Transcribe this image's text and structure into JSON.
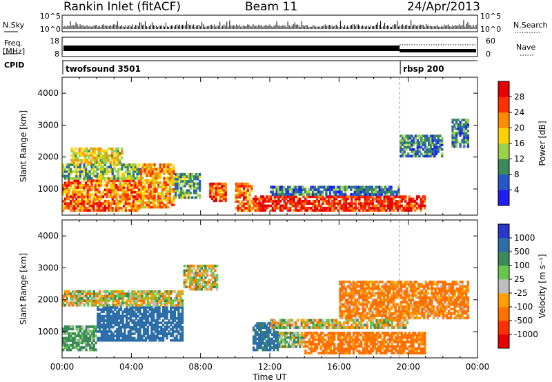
{
  "header": {
    "title": "Rankin Inlet (fitACF)",
    "beam": "Beam 11",
    "date": "24/Apr/2013"
  },
  "status_panel": {
    "nsky_label": "N.Sky",
    "nsky_ticks": [
      "10^5",
      "10^0"
    ],
    "nsearch_label": "N.Search",
    "freq_label_line1": "Freq.",
    "freq_label_line2": "[MHz]",
    "freq_ticks": [
      "18",
      "8"
    ],
    "nave_label": "Nave",
    "nave_ticks": [
      "60",
      "0"
    ],
    "cpid_label": "CPID",
    "cpid_modes": [
      {
        "name": "twofsound 3501",
        "start_hour": 0
      },
      {
        "name": "rbsp 200",
        "start_hour": 19.5
      }
    ]
  },
  "axes": {
    "ylabel": "Slant Range [km]",
    "yticks": [
      "1000",
      "2000",
      "3000",
      "4000"
    ],
    "xlabel": "Time UT",
    "xticks": [
      "00:00",
      "04:00",
      "08:00",
      "12:00",
      "16:00",
      "20:00",
      "00:00"
    ]
  },
  "colorbars": {
    "power": {
      "label": "Power [dB]",
      "ticks": [
        "4",
        "8",
        "12",
        "16",
        "20",
        "24",
        "28"
      ],
      "colors": [
        "#1e1ef0",
        "#2858c8",
        "#3a8a5a",
        "#9ad24a",
        "#ffd200",
        "#ff8c00",
        "#ff3000",
        "#e60000"
      ]
    },
    "velocity": {
      "label": "Velocity [m s⁻¹]",
      "ticks": [
        "1000",
        "500",
        "100",
        "25",
        "-25",
        "-100",
        "-500",
        "-1000"
      ],
      "colors": [
        "#2838c8",
        "#2e6ea8",
        "#3a8a5a",
        "#66c84a",
        "#bebebe",
        "#ffa000",
        "#ff7000",
        "#ff3000",
        "#e60000"
      ]
    }
  },
  "chart_data": [
    {
      "type": "heatmap",
      "title": "Power",
      "xlabel": "Time UT",
      "ylabel": "Slant Range [km]",
      "xlim_hours": [
        0,
        24
      ],
      "ylim_km": [
        180,
        4500
      ],
      "colorbar_range_db": [
        0,
        30
      ],
      "regions": [
        {
          "t0": 0.0,
          "t1": 4.5,
          "r0": 300,
          "r1": 1300,
          "value_db": 22
        },
        {
          "t0": 0.0,
          "t1": 4.5,
          "r0": 1300,
          "r1": 1800,
          "value_db": 12
        },
        {
          "t0": 0.5,
          "t1": 3.5,
          "r0": 1800,
          "r1": 2300,
          "value_db": 16
        },
        {
          "t0": 4.5,
          "t1": 6.5,
          "r0": 400,
          "r1": 1800,
          "value_db": 20
        },
        {
          "t0": 6.5,
          "t1": 8.0,
          "r0": 700,
          "r1": 1500,
          "value_db": 10
        },
        {
          "t0": 8.5,
          "t1": 9.5,
          "r0": 600,
          "r1": 1200,
          "value_db": 24
        },
        {
          "t0": 10.0,
          "t1": 11.0,
          "r0": 300,
          "r1": 1200,
          "value_db": 22
        },
        {
          "t0": 11.0,
          "t1": 21.0,
          "r0": 300,
          "r1": 800,
          "value_db": 26
        },
        {
          "t0": 12.0,
          "t1": 19.5,
          "r0": 800,
          "r1": 1100,
          "value_db": 8
        },
        {
          "t0": 19.5,
          "t1": 22.0,
          "r0": 2000,
          "r1": 2700,
          "value_db": 8
        },
        {
          "t0": 22.5,
          "t1": 23.5,
          "r0": 2300,
          "r1": 3200,
          "value_db": 8
        }
      ]
    },
    {
      "type": "heatmap",
      "title": "Velocity",
      "xlabel": "Time UT",
      "ylabel": "Slant Range [km]",
      "xlim_hours": [
        0,
        24
      ],
      "ylim_km": [
        180,
        4500
      ],
      "colorbar_range_ms": [
        -1000,
        1000
      ],
      "regions": [
        {
          "t0": 0.0,
          "t1": 2.0,
          "r0": 400,
          "r1": 1200,
          "value_ms": 150
        },
        {
          "t0": 2.0,
          "t1": 7.0,
          "r0": 700,
          "r1": 1800,
          "value_ms": 700
        },
        {
          "t0": 0.0,
          "t1": 7.0,
          "r0": 1800,
          "r1": 2300,
          "value_ms": 0
        },
        {
          "t0": 7.0,
          "t1": 9.0,
          "r0": 2300,
          "r1": 3100,
          "value_ms": 0
        },
        {
          "t0": 11.0,
          "t1": 12.5,
          "r0": 400,
          "r1": 1300,
          "value_ms": 600
        },
        {
          "t0": 12.5,
          "t1": 14.0,
          "r0": 500,
          "r1": 1000,
          "value_ms": 50
        },
        {
          "t0": 14.0,
          "t1": 21.0,
          "r0": 300,
          "r1": 1000,
          "value_ms": -200
        },
        {
          "t0": 12.0,
          "t1": 20.0,
          "r0": 1100,
          "r1": 1400,
          "value_ms": 0
        },
        {
          "t0": 16.0,
          "t1": 23.5,
          "r0": 1400,
          "r1": 2600,
          "value_ms": -150
        }
      ]
    }
  ]
}
